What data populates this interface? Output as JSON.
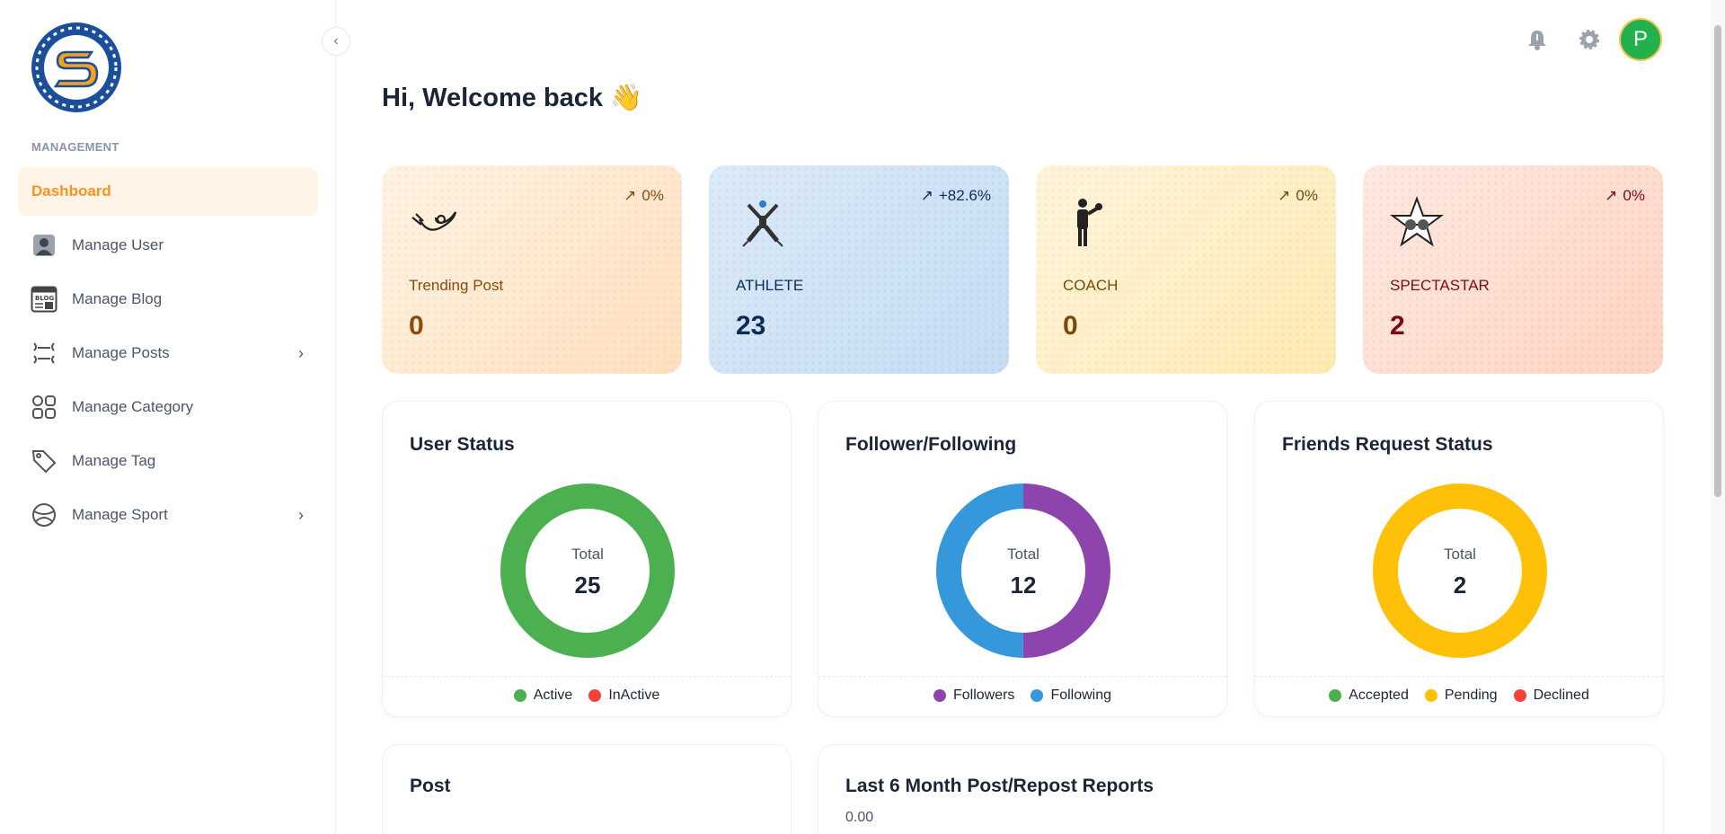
{
  "sidebar": {
    "section_label": "MANAGEMENT",
    "items": [
      {
        "label": "Dashboard",
        "icon": "dashboard",
        "active": true
      },
      {
        "label": "Manage User",
        "icon": "user-icon"
      },
      {
        "label": "Manage Blog",
        "icon": "blog-icon"
      },
      {
        "label": "Manage Posts",
        "icon": "posts-icon",
        "has_children": true
      },
      {
        "label": "Manage Category",
        "icon": "category-icon"
      },
      {
        "label": "Manage Tag",
        "icon": "tag-icon"
      },
      {
        "label": "Manage Sport",
        "icon": "sport-icon",
        "has_children": true
      }
    ]
  },
  "header": {
    "avatar_initial": "P",
    "greeting": "Hi, Welcome back 👋"
  },
  "stats": [
    {
      "label": "Trending Post",
      "value": "0",
      "trend": "0%",
      "color": "#8a4b0f"
    },
    {
      "label": "ATHLETE",
      "value": "23",
      "trend": "+82.6%",
      "color": "#0c2d57"
    },
    {
      "label": "COACH",
      "value": "0",
      "trend": "0%",
      "color": "#7a4a0a"
    },
    {
      "label": "SPECTASTAR",
      "value": "2",
      "trend": "0%",
      "color": "#7a0c1a"
    }
  ],
  "charts": [
    {
      "title": "User Status",
      "total_label": "Total",
      "total": "25",
      "legend": [
        {
          "name": "Active",
          "color": "#4caf50"
        },
        {
          "name": "InActive",
          "color": "#f44336"
        }
      ],
      "segments": [
        {
          "value": 25,
          "color": "#4caf50"
        }
      ]
    },
    {
      "title": "Follower/Following",
      "total_label": "Total",
      "total": "12",
      "legend": [
        {
          "name": "Followers",
          "color": "#8e44ad"
        },
        {
          "name": "Following",
          "color": "#3498db"
        }
      ],
      "segments": [
        {
          "value": 6,
          "color": "#8e44ad"
        },
        {
          "value": 6,
          "color": "#3498db"
        }
      ]
    },
    {
      "title": "Friends Request Status",
      "total_label": "Total",
      "total": "2",
      "legend": [
        {
          "name": "Accepted",
          "color": "#4caf50"
        },
        {
          "name": "Pending",
          "color": "#ffc107"
        },
        {
          "name": "Declined",
          "color": "#f44336"
        }
      ],
      "segments": [
        {
          "value": 2,
          "color": "#ffc107"
        }
      ]
    }
  ],
  "bottom": {
    "post_title": "Post",
    "report_title": "Last 6 Month Post/Repost Reports",
    "report_axis_value": "0.00"
  }
}
